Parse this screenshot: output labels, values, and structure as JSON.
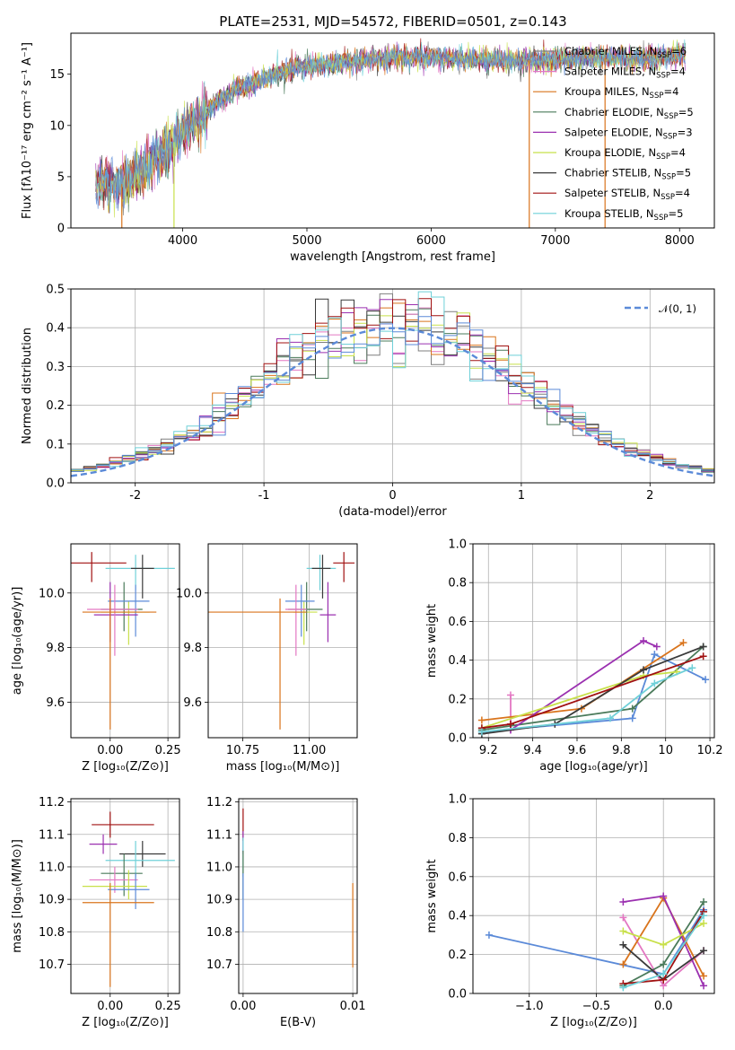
{
  "figure": {
    "title": "PLATE=2531, MJD=54572, FIBERID=0501, z=0.143"
  },
  "colors": {
    "Chabrier MILES": "#7f7f7f",
    "Salpeter MILES": "#e377c2",
    "Kroupa MILES": "#d9741c",
    "Chabrier ELODIE": "#4a7a5a",
    "Salpeter ELODIE": "#9b30b0",
    "Kroupa ELODIE": "#c8e04a",
    "Chabrier STELIB": "#3a3a3a",
    "Salpeter STELIB": "#a01010",
    "Kroupa STELIB": "#6fd0d8",
    "Chabrier MILES alt": "#5b8ad8"
  },
  "chart_data": [
    {
      "id": "spectrum",
      "type": "line",
      "title": "PLATE=2531, MJD=54572, FIBERID=0501, z=0.143",
      "xlabel": "wavelength [Angstrom, rest frame]",
      "ylabel": "Flux [fλ10⁻¹⁷ erg cm⁻² s⁻¹ A⁻¹]",
      "xlim": [
        3100,
        8280
      ],
      "ylim": [
        0,
        19
      ],
      "xticks": [
        4000,
        5000,
        6000,
        7000,
        8000
      ],
      "yticks": [
        0,
        5,
        10,
        15
      ],
      "grid": false,
      "legend_position": "top-right",
      "legend": [
        {
          "label": "Chabrier MILES, N",
          "sub": "SSP",
          "tail": "=6",
          "color": "#7f7f7f"
        },
        {
          "label": "Salpeter MILES, N",
          "sub": "SSP",
          "tail": "=4",
          "color": "#e377c2"
        },
        {
          "label": "Kroupa MILES, N",
          "sub": "SSP",
          "tail": "=4",
          "color": "#d9741c"
        },
        {
          "label": "Chabrier ELODIE, N",
          "sub": "SSP",
          "tail": "=5",
          "color": "#4a7a5a"
        },
        {
          "label": "Salpeter ELODIE, N",
          "sub": "SSP",
          "tail": "=3",
          "color": "#9b30b0"
        },
        {
          "label": "Kroupa ELODIE, N",
          "sub": "SSP",
          "tail": "=4",
          "color": "#c8e04a"
        },
        {
          "label": "Chabrier STELIB, N",
          "sub": "SSP",
          "tail": "=5",
          "color": "#3a3a3a"
        },
        {
          "label": "Salpeter STELIB, N",
          "sub": "SSP",
          "tail": "=4",
          "color": "#a01010"
        },
        {
          "label": "Kroupa STELIB, N",
          "sub": "SSP",
          "tail": "=5",
          "color": "#6fd0d8"
        }
      ],
      "continuum": {
        "x": [
          3300,
          3500,
          3700,
          3900,
          4100,
          4300,
          4500,
          4700,
          4900,
          5100,
          5300,
          5500,
          5700,
          5900,
          6100,
          6300,
          6500,
          6700,
          6900,
          7100,
          7300,
          7500,
          7700,
          7900,
          8050
        ],
        "y": [
          4.5,
          4.2,
          5.8,
          8.0,
          10.5,
          12.5,
          13.8,
          14.8,
          15.6,
          15.9,
          16.2,
          16.4,
          16.6,
          16.7,
          16.6,
          16.5,
          16.4,
          16.3,
          16.4,
          16.5,
          16.6,
          16.6,
          16.5,
          16.7,
          17.0
        ]
      },
      "edge_drops": [
        {
          "x": 3510,
          "color": "#d9741c"
        },
        {
          "x": 3930,
          "color": "#c8e04a"
        },
        {
          "x": 6790,
          "color": "#d9741c"
        },
        {
          "x": 7400,
          "color": "#d9741c"
        }
      ]
    },
    {
      "id": "residuals",
      "type": "step",
      "xlabel": "(data-model)/error",
      "ylabel": "Normed distribution",
      "xlim": [
        -2.5,
        2.5
      ],
      "ylim": [
        0,
        0.5
      ],
      "xticks": [
        -2,
        -1,
        0,
        1,
        2
      ],
      "yticks": [
        0.0,
        0.1,
        0.2,
        0.3,
        0.4,
        0.5
      ],
      "grid": true,
      "legend_position": "top-right",
      "reference": {
        "label": "𝒩(0, 1)",
        "color": "#5b8ad8",
        "mean": 0,
        "sigma": 1
      },
      "bin_width": 0.1
    },
    {
      "id": "age-vs-Z",
      "type": "errorbar",
      "xlabel": "Z [log₁₀(Z/Z⊙)]",
      "ylabel": "age  [log₁₀(age/yr)]",
      "xlim": [
        -0.17,
        0.3
      ],
      "ylim": [
        9.47,
        10.18
      ],
      "xticks": [
        0.0,
        0.25
      ],
      "xticklabels": [
        "0.00",
        "0.25"
      ],
      "yticks": [
        9.6,
        9.8,
        10.0
      ],
      "grid": true,
      "points": [
        {
          "x": -0.08,
          "xerr": [
            0.12,
            0.15
          ],
          "y": 10.11,
          "yerr": [
            0.07,
            0.04
          ],
          "color": "#a01010"
        },
        {
          "x": 0.11,
          "xerr": [
            0.13,
            0.17
          ],
          "y": 10.09,
          "yerr": [
            0.08,
            0.05
          ],
          "color": "#6fd0d8"
        },
        {
          "x": 0.14,
          "xerr": [
            0.05,
            0.05
          ],
          "y": 10.09,
          "yerr": [
            0.11,
            0.05
          ],
          "color": "#3a3a3a"
        },
        {
          "x": 0.08,
          "xerr": [
            0.12,
            0.09
          ],
          "y": 9.93,
          "yerr": [
            0.12,
            0.04
          ],
          "color": "#c8e04a"
        },
        {
          "x": 0.06,
          "xerr": [
            0.1,
            0.08
          ],
          "y": 9.94,
          "yerr": [
            0.08,
            0.1
          ],
          "color": "#4a7a5a"
        },
        {
          "x": 0.11,
          "xerr": [
            0.12,
            0.06
          ],
          "y": 9.97,
          "yerr": [
            0.13,
            0.06
          ],
          "color": "#5b8ad8"
        },
        {
          "x": 0.0,
          "xerr": [
            0.07,
            0.12
          ],
          "y": 9.92,
          "yerr": [
            0.1,
            0.12
          ],
          "color": "#9b30b0"
        },
        {
          "x": 0.02,
          "xerr": [
            0.12,
            0.1
          ],
          "y": 9.94,
          "yerr": [
            0.17,
            0.09
          ],
          "color": "#e377c2"
        },
        {
          "x": 0.0,
          "xerr": [
            0.12,
            0.2
          ],
          "y": 9.93,
          "yerr": [
            0.43,
            0.05
          ],
          "color": "#d9741c"
        }
      ]
    },
    {
      "id": "age-vs-mass",
      "type": "errorbar",
      "xlabel": "mass [log₁₀(M/M⊙)]",
      "xlim": [
        10.62,
        11.18
      ],
      "ylim": [
        9.47,
        10.18
      ],
      "xticks": [
        10.75,
        11.0
      ],
      "xticklabels": [
        "10.75",
        "11.00"
      ],
      "yticks": [
        9.6,
        9.8,
        10.0
      ],
      "grid": true,
      "points": [
        {
          "x": 11.13,
          "xerr": [
            0.04,
            0.04
          ],
          "y": 10.11,
          "yerr": [
            0.07,
            0.04
          ],
          "color": "#a01010"
        },
        {
          "x": 11.04,
          "xerr": [
            0.05,
            0.06
          ],
          "y": 10.09,
          "yerr": [
            0.08,
            0.05
          ],
          "color": "#6fd0d8"
        },
        {
          "x": 11.05,
          "xerr": [
            0.04,
            0.03
          ],
          "y": 10.09,
          "yerr": [
            0.11,
            0.05
          ],
          "color": "#3a3a3a"
        },
        {
          "x": 10.98,
          "xerr": [
            0.04,
            0.05
          ],
          "y": 9.93,
          "yerr": [
            0.12,
            0.04
          ],
          "color": "#c8e04a"
        },
        {
          "x": 10.99,
          "xerr": [
            0.07,
            0.06
          ],
          "y": 9.94,
          "yerr": [
            0.08,
            0.1
          ],
          "color": "#4a7a5a"
        },
        {
          "x": 10.97,
          "xerr": [
            0.06,
            0.05
          ],
          "y": 9.97,
          "yerr": [
            0.13,
            0.06
          ],
          "color": "#5b8ad8"
        },
        {
          "x": 11.07,
          "xerr": [
            0.03,
            0.03
          ],
          "y": 9.92,
          "yerr": [
            0.1,
            0.12
          ],
          "color": "#9b30b0"
        },
        {
          "x": 10.95,
          "xerr": [
            0.04,
            0.04
          ],
          "y": 9.94,
          "yerr": [
            0.17,
            0.09
          ],
          "color": "#e377c2"
        },
        {
          "x": 10.89,
          "xerr": [
            0.27,
            0.1
          ],
          "y": 9.93,
          "yerr": [
            0.43,
            0.05
          ],
          "color": "#d9741c"
        }
      ]
    },
    {
      "id": "weight-vs-age",
      "type": "line",
      "xlabel": "age  [log₁₀(age/yr)]",
      "ylabel": "mass weight",
      "xlim": [
        9.13,
        10.22
      ],
      "ylim": [
        0,
        1
      ],
      "xticks": [
        9.2,
        9.4,
        9.6,
        9.8,
        10.0,
        10.2
      ],
      "yticks": [
        0.0,
        0.2,
        0.4,
        0.6,
        0.8,
        1.0
      ],
      "grid": true,
      "series": [
        {
          "color": "#5b8ad8",
          "x": [
            9.17,
            9.85,
            9.95,
            10.18
          ],
          "y": [
            0.03,
            0.1,
            0.43,
            0.3
          ]
        },
        {
          "color": "#e377c2",
          "x": [
            9.3,
            9.3
          ],
          "y": [
            0.22,
            0.04
          ]
        },
        {
          "color": "#d9741c",
          "x": [
            9.17,
            9.62,
            10.08
          ],
          "y": [
            0.09,
            0.15,
            0.49
          ]
        },
        {
          "color": "#4a7a5a",
          "x": [
            9.17,
            9.85,
            10.17
          ],
          "y": [
            0.04,
            0.15,
            0.47
          ]
        },
        {
          "color": "#9b30b0",
          "x": [
            9.3,
            9.9,
            9.96
          ],
          "y": [
            0.04,
            0.5,
            0.47
          ]
        },
        {
          "color": "#c8e04a",
          "x": [
            9.17,
            9.9,
            10.05
          ],
          "y": [
            0.05,
            0.32,
            0.34
          ]
        },
        {
          "color": "#3a3a3a",
          "x": [
            9.17,
            9.5,
            9.9,
            10.17
          ],
          "y": [
            0.02,
            0.07,
            0.35,
            0.47
          ]
        },
        {
          "color": "#a01010",
          "x": [
            9.17,
            9.3,
            10.17
          ],
          "y": [
            0.05,
            0.07,
            0.42
          ]
        },
        {
          "color": "#6fd0d8",
          "x": [
            9.17,
            9.75,
            9.95,
            10.12
          ],
          "y": [
            0.03,
            0.1,
            0.28,
            0.36
          ]
        }
      ]
    },
    {
      "id": "mass-vs-Z",
      "type": "errorbar",
      "xlabel": "Z [log₁₀(Z/Z⊙)]",
      "ylabel": "mass [log₁₀(M/M⊙)]",
      "xlim": [
        -0.17,
        0.3
      ],
      "ylim": [
        10.61,
        11.21
      ],
      "xticks": [
        0.0,
        0.25
      ],
      "xticklabels": [
        "0.00",
        "0.25"
      ],
      "yticks": [
        10.7,
        10.8,
        10.9,
        11.0,
        11.1,
        11.2
      ],
      "grid": true,
      "points": [
        {
          "x": 0.0,
          "xerr": [
            0.08,
            0.19
          ],
          "y": 11.13,
          "yerr": [
            0.04,
            0.04
          ],
          "color": "#a01010"
        },
        {
          "x": -0.03,
          "xerr": [
            0.06,
            0.06
          ],
          "y": 11.07,
          "yerr": [
            0.03,
            0.03
          ],
          "color": "#9b30b0"
        },
        {
          "x": 0.14,
          "xerr": [
            0.1,
            0.1
          ],
          "y": 11.04,
          "yerr": [
            0.04,
            0.04
          ],
          "color": "#3a3a3a"
        },
        {
          "x": 0.11,
          "xerr": [
            0.13,
            0.17
          ],
          "y": 11.02,
          "yerr": [
            0.05,
            0.06
          ],
          "color": "#6fd0d8"
        },
        {
          "x": 0.06,
          "xerr": [
            0.1,
            0.08
          ],
          "y": 10.98,
          "yerr": [
            0.07,
            0.06
          ],
          "color": "#4a7a5a"
        },
        {
          "x": 0.02,
          "xerr": [
            0.11,
            0.1
          ],
          "y": 10.96,
          "yerr": [
            0.04,
            0.04
          ],
          "color": "#e377c2"
        },
        {
          "x": 0.08,
          "xerr": [
            0.2,
            0.08
          ],
          "y": 10.94,
          "yerr": [
            0.04,
            0.05
          ],
          "color": "#c8e04a"
        },
        {
          "x": 0.11,
          "xerr": [
            0.12,
            0.06
          ],
          "y": 10.93,
          "yerr": [
            0.06,
            0.05
          ],
          "color": "#5b8ad8"
        },
        {
          "x": 0.0,
          "xerr": [
            0.12,
            0.19
          ],
          "y": 10.89,
          "yerr": [
            0.26,
            0.06
          ],
          "color": "#d9741c"
        }
      ]
    },
    {
      "id": "mass-vs-ebv",
      "type": "errorbar",
      "xlabel": "E(B-V)",
      "xlim": [
        -0.0004,
        0.0104
      ],
      "ylim": [
        10.61,
        11.21
      ],
      "xticks": [
        0.0,
        0.01
      ],
      "xticklabels": [
        "0.00",
        "0.01"
      ],
      "yticks": [
        10.7,
        10.8,
        10.9,
        11.0,
        11.1,
        11.2
      ],
      "grid": true,
      "points": [
        {
          "x": 0.0,
          "xerr": [
            0,
            0
          ],
          "y": 11.13,
          "yerr": [
            0.05,
            0.05
          ],
          "color": "#a01010"
        },
        {
          "x": 0.0,
          "xerr": [
            0,
            0
          ],
          "y": 11.07,
          "yerr": [
            0.03,
            0.04
          ],
          "color": "#9b30b0"
        },
        {
          "x": 0.0,
          "xerr": [
            0,
            0
          ],
          "y": 11.03,
          "yerr": [
            0.06,
            0.06
          ],
          "color": "#6fd0d8"
        },
        {
          "x": 0.0,
          "xerr": [
            0,
            0
          ],
          "y": 10.98,
          "yerr": [
            0.08,
            0.07
          ],
          "color": "#4a7a5a"
        },
        {
          "x": 0.0,
          "xerr": [
            0,
            0
          ],
          "y": 10.93,
          "yerr": [
            0.13,
            0.05
          ],
          "color": "#5b8ad8"
        },
        {
          "x": 0.01,
          "xerr": [
            0,
            0
          ],
          "y": 10.82,
          "yerr": [
            0.13,
            0.13
          ],
          "color": "#d9741c"
        }
      ]
    },
    {
      "id": "weight-vs-Z",
      "type": "line",
      "xlabel": "Z [log₁₀(Z/Z⊙)]",
      "ylabel": "mass weight",
      "xlim": [
        -1.42,
        0.38
      ],
      "ylim": [
        0,
        1
      ],
      "xticks": [
        -1.0,
        -0.5,
        0.0
      ],
      "xticklabels": [
        "−1.0",
        "−0.5",
        "0.0"
      ],
      "yticks": [
        0.0,
        0.2,
        0.4,
        0.6,
        0.8,
        1.0
      ],
      "grid": true,
      "series": [
        {
          "color": "#5b8ad8",
          "x": [
            -1.3,
            0.0,
            0.3
          ],
          "y": [
            0.3,
            0.1,
            0.43
          ]
        },
        {
          "color": "#e377c2",
          "x": [
            -0.3,
            0.0,
            0.3
          ],
          "y": [
            0.39,
            0.04,
            0.22
          ]
        },
        {
          "color": "#d9741c",
          "x": [
            -0.3,
            0.0,
            0.3
          ],
          "y": [
            0.15,
            0.49,
            0.09
          ]
        },
        {
          "color": "#4a7a5a",
          "x": [
            -0.3,
            0.0,
            0.3
          ],
          "y": [
            0.04,
            0.15,
            0.47
          ]
        },
        {
          "color": "#9b30b0",
          "x": [
            -0.3,
            0.0,
            0.3
          ],
          "y": [
            0.47,
            0.5,
            0.04
          ]
        },
        {
          "color": "#c8e04a",
          "x": [
            -0.3,
            0.0,
            0.3
          ],
          "y": [
            0.32,
            0.25,
            0.36
          ]
        },
        {
          "color": "#3a3a3a",
          "x": [
            -0.3,
            0.0,
            0.3
          ],
          "y": [
            0.25,
            0.07,
            0.22
          ]
        },
        {
          "color": "#a01010",
          "x": [
            -0.3,
            0.0,
            0.3
          ],
          "y": [
            0.05,
            0.07,
            0.42
          ]
        },
        {
          "color": "#6fd0d8",
          "x": [
            -0.3,
            0.0,
            0.3
          ],
          "y": [
            0.03,
            0.1,
            0.4
          ]
        }
      ]
    }
  ]
}
